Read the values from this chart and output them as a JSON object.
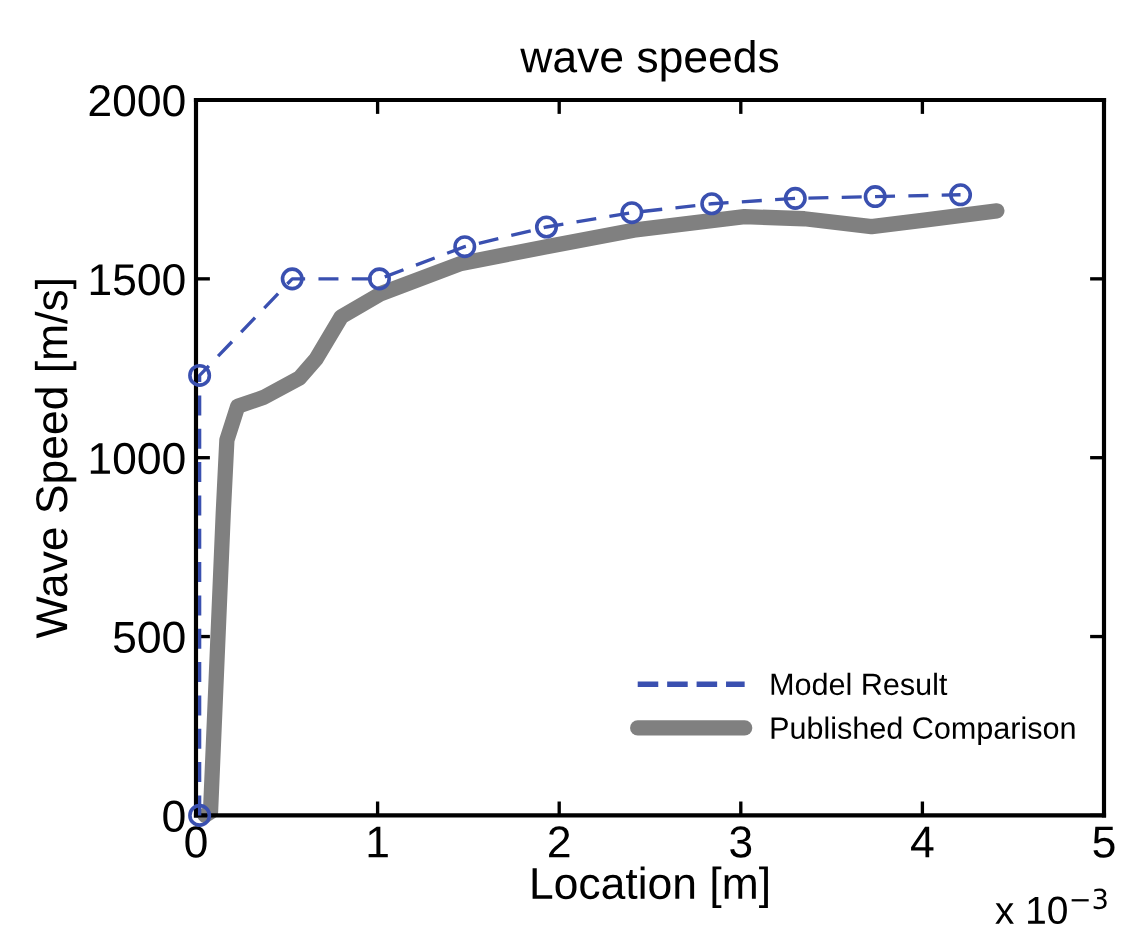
{
  "chart_data": {
    "type": "line",
    "title": "wave speeds",
    "xlabel": "Location [m]",
    "ylabel": "Wave Speed [m/s]",
    "annotations": [
      "x 10$^{−3}$"
    ],
    "xlim": [
      0,
      5
    ],
    "xticks": [
      0,
      1,
      2,
      3,
      4,
      5
    ],
    "ylim": [
      0,
      2000
    ],
    "yticks": [
      0,
      500,
      1000,
      1500,
      2000
    ],
    "grid": false,
    "legend": "bottom right",
    "series": [
      {
        "name": "Model Result",
        "color": "#3a50b0",
        "marker": "circle",
        "line_style": "dashed",
        "x": [
          0.02,
          0.02,
          0.53,
          1.01,
          1.48,
          1.93,
          2.4,
          2.84,
          3.3,
          3.74,
          4.21
        ],
        "values": [
          0,
          1230,
          1500,
          1500,
          1590,
          1645,
          1685,
          1710,
          1725,
          1730,
          1735
        ]
      },
      {
        "name": "Published Comparison",
        "color": "#808080",
        "marker": "none",
        "line_style": "solid",
        "x": [
          0.05,
          0.08,
          0.15,
          0.17,
          0.23,
          0.37,
          0.57,
          0.66,
          0.8,
          1.02,
          1.46,
          1.93,
          2.41,
          3.02,
          3.35,
          3.72,
          4.01,
          4.41
        ],
        "values": [
          0,
          10,
          844,
          1049,
          1144,
          1168,
          1223,
          1275,
          1394,
          1459,
          1543,
          1590,
          1636,
          1674,
          1668,
          1646,
          1664,
          1690
        ]
      }
    ]
  }
}
